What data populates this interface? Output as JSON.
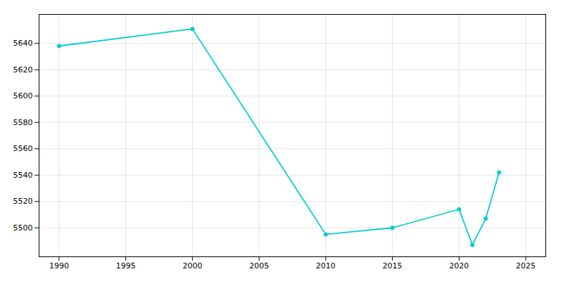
{
  "chart_data": {
    "type": "line",
    "x": [
      1990,
      2000,
      2010,
      2015,
      2020,
      2021,
      2022,
      2023
    ],
    "values": [
      5638,
      5651,
      5495,
      5500,
      5514,
      5487,
      5507,
      5542
    ],
    "color": "#00CED1",
    "marker": "circle",
    "xlim": [
      1988.5,
      2026.5
    ],
    "ylim": [
      5478,
      5662
    ],
    "xticks": [
      1990,
      1995,
      2000,
      2005,
      2010,
      2015,
      2020,
      2025
    ],
    "yticks": [
      5500,
      5520,
      5540,
      5560,
      5580,
      5600,
      5620,
      5640
    ],
    "grid": true
  }
}
